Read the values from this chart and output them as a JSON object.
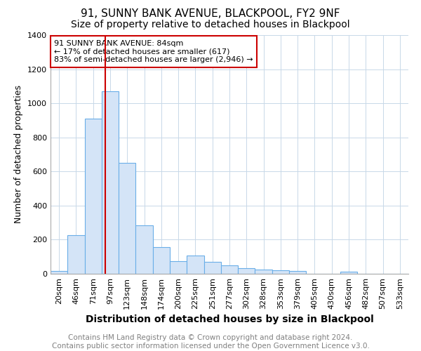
{
  "title1": "91, SUNNY BANK AVENUE, BLACKPOOL, FY2 9NF",
  "title2": "Size of property relative to detached houses in Blackpool",
  "xlabel": "Distribution of detached houses by size in Blackpool",
  "ylabel": "Number of detached properties",
  "categories": [
    "20sqm",
    "46sqm",
    "71sqm",
    "97sqm",
    "123sqm",
    "148sqm",
    "174sqm",
    "200sqm",
    "225sqm",
    "251sqm",
    "277sqm",
    "302sqm",
    "328sqm",
    "353sqm",
    "379sqm",
    "405sqm",
    "430sqm",
    "456sqm",
    "482sqm",
    "507sqm",
    "533sqm"
  ],
  "values": [
    15,
    225,
    910,
    1070,
    650,
    285,
    155,
    75,
    108,
    70,
    50,
    35,
    25,
    20,
    15,
    0,
    0,
    12,
    0,
    0,
    0
  ],
  "bar_color": "#d4e4f7",
  "bar_edge_color": "#6aaee8",
  "property_line_x": 2.73,
  "annotation_text": "91 SUNNY BANK AVENUE: 84sqm\n← 17% of detached houses are smaller (617)\n83% of semi-detached houses are larger (2,946) →",
  "annotation_box_color": "#ffffff",
  "annotation_box_edge_color": "#cc0000",
  "property_line_color": "#cc0000",
  "ylim": [
    0,
    1400
  ],
  "yticks": [
    0,
    200,
    400,
    600,
    800,
    1000,
    1200,
    1400
  ],
  "footnote": "Contains HM Land Registry data © Crown copyright and database right 2024.\nContains public sector information licensed under the Open Government Licence v3.0.",
  "title1_fontsize": 11,
  "title2_fontsize": 10,
  "xlabel_fontsize": 10,
  "ylabel_fontsize": 9,
  "tick_fontsize": 8,
  "footnote_fontsize": 7.5,
  "grid_color": "#c8d8e8",
  "background_color": "#ffffff"
}
